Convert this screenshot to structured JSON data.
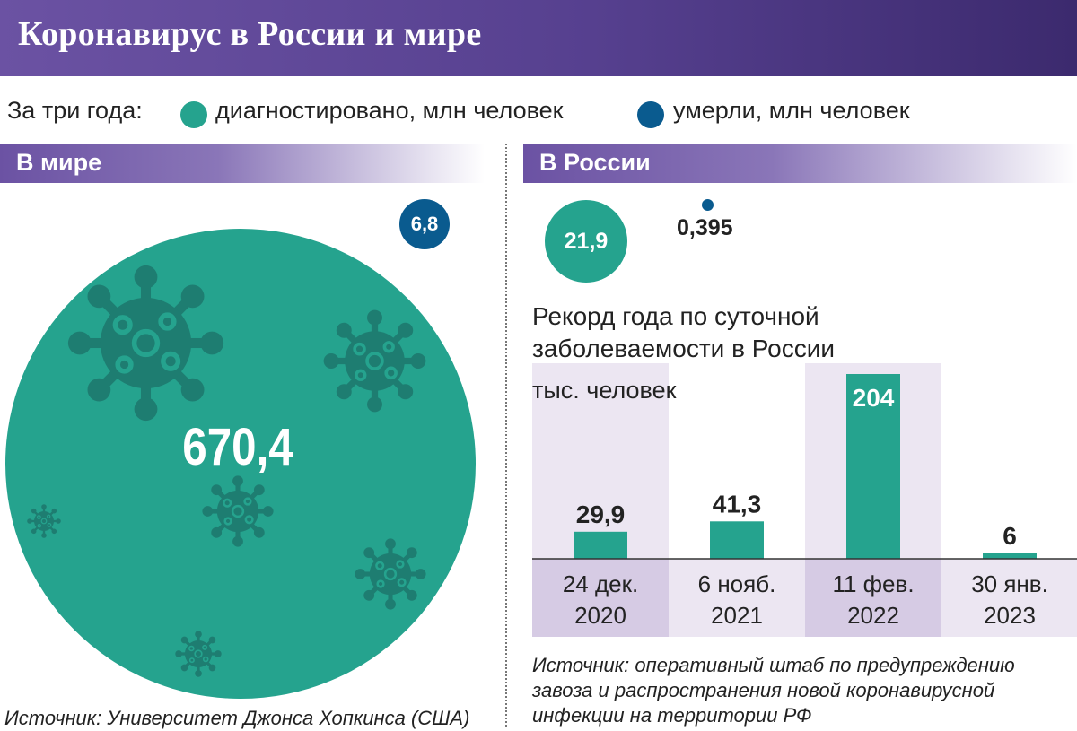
{
  "title": "Коронавирус в России и мире",
  "legend": {
    "prefix": "За три года:",
    "diagnosed": "диагностировано, млн человек",
    "died": "умерли, млн человек",
    "colors": {
      "diagnosed": "#25a38e",
      "died": "#0a5b8f"
    }
  },
  "world": {
    "heading": "В мире",
    "diagnosed": "670,4",
    "died": "6,8",
    "source": "Источник: Университет Джонса Хопкинса (США)"
  },
  "russia": {
    "heading": "В России",
    "diagnosed": "21,9",
    "died": "0,395",
    "subtitle_line1": "Рекорд года по суточной",
    "subtitle_line2": "заболеваемости в России",
    "units": "тыс. человек",
    "source_line1": "Источник: оперативный штаб по предупреждению",
    "source_line2": "завоза и распространения новой коронавирусной",
    "source_line3": "инфекции на территории РФ"
  },
  "chart_data": {
    "type": "bar",
    "title": "Рекорд года по суточной заболеваемости в России",
    "ylabel": "тыс. человек",
    "categories": [
      [
        "24 дек.",
        "2020"
      ],
      [
        "6 нояб.",
        "2021"
      ],
      [
        "11 фев.",
        "2022"
      ],
      [
        "30 янв.",
        "2023"
      ]
    ],
    "values": [
      29.9,
      41.3,
      204,
      6
    ],
    "value_labels": [
      "29,9",
      "41,3",
      "204",
      "6"
    ],
    "ylim": [
      0,
      204
    ],
    "bar_color": "#25a38e"
  }
}
